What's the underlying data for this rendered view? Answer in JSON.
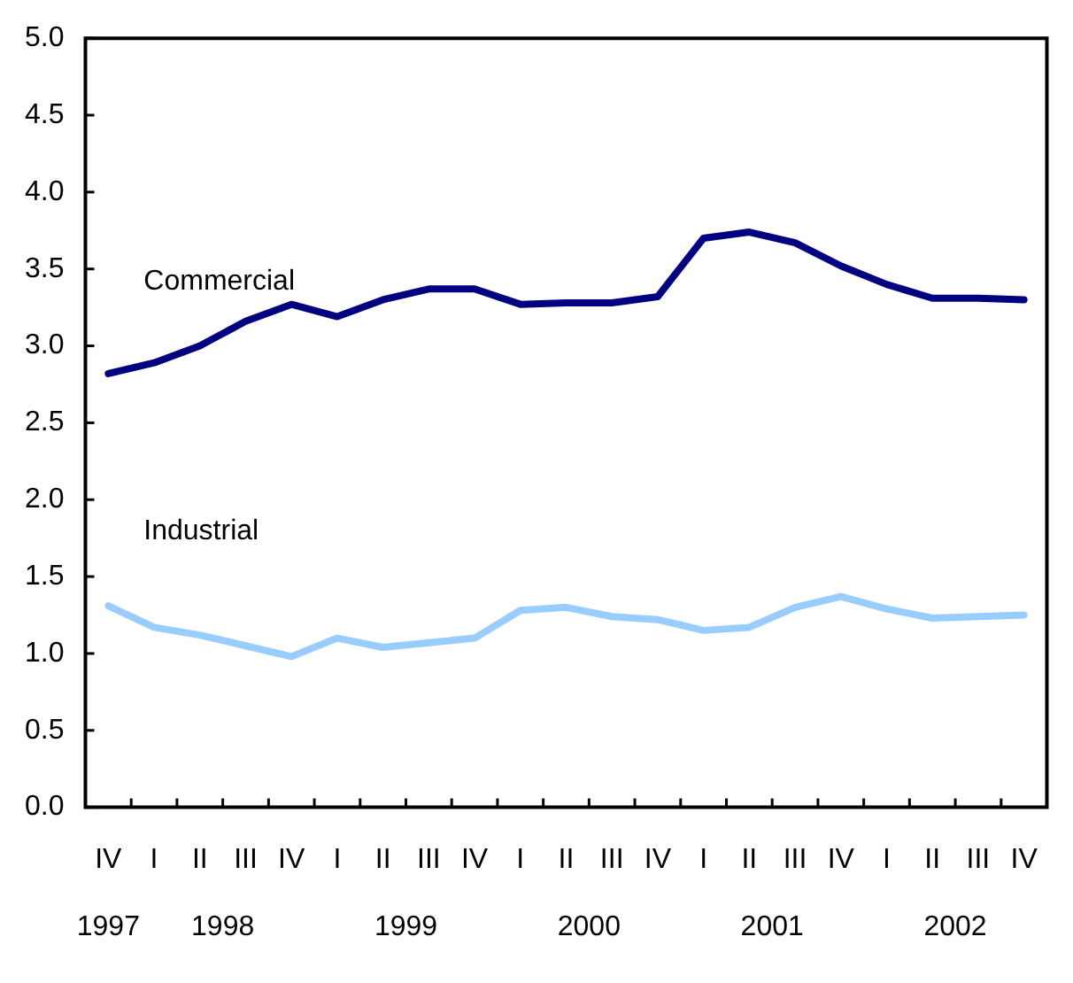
{
  "chart_data": {
    "type": "line",
    "categories": [
      "IV",
      "I",
      "II",
      "III",
      "IV",
      "I",
      "II",
      "III",
      "IV",
      "I",
      "II",
      "III",
      "IV",
      "I",
      "II",
      "III",
      "IV",
      "I",
      "II",
      "III",
      "IV"
    ],
    "series": [
      {
        "name": "Commercial",
        "color": "#000080",
        "values": [
          2.82,
          2.89,
          3.0,
          3.16,
          3.27,
          3.19,
          3.3,
          3.37,
          3.37,
          3.27,
          3.28,
          3.28,
          3.32,
          3.7,
          3.74,
          3.67,
          3.52,
          3.4,
          3.31,
          3.31,
          3.3
        ]
      },
      {
        "name": "Industrial",
        "color": "#99ccff",
        "values": [
          1.31,
          1.17,
          1.12,
          1.05,
          0.98,
          1.1,
          1.04,
          1.07,
          1.1,
          1.28,
          1.3,
          1.24,
          1.22,
          1.15,
          1.17,
          1.3,
          1.37,
          1.29,
          1.23,
          1.24,
          1.25
        ]
      }
    ],
    "ylim": [
      0,
      5
    ],
    "yticks": [
      {
        "value": 0,
        "label": "0.0"
      },
      0.5,
      {
        "value": 1,
        "label": "1.0"
      },
      1.5,
      {
        "value": 2,
        "label": "2.0"
      },
      2.5,
      {
        "value": 3,
        "label": "3.0"
      },
      3.5,
      {
        "value": 4,
        "label": "4.0"
      },
      4.5,
      {
        "value": 5,
        "label": "5.0"
      }
    ],
    "annotations": [
      "1997",
      "1998",
      "1999",
      "2000",
      "2001",
      "2002"
    ],
    "grid": false,
    "legend": false,
    "marker": "none",
    "line_style": "solid"
  }
}
